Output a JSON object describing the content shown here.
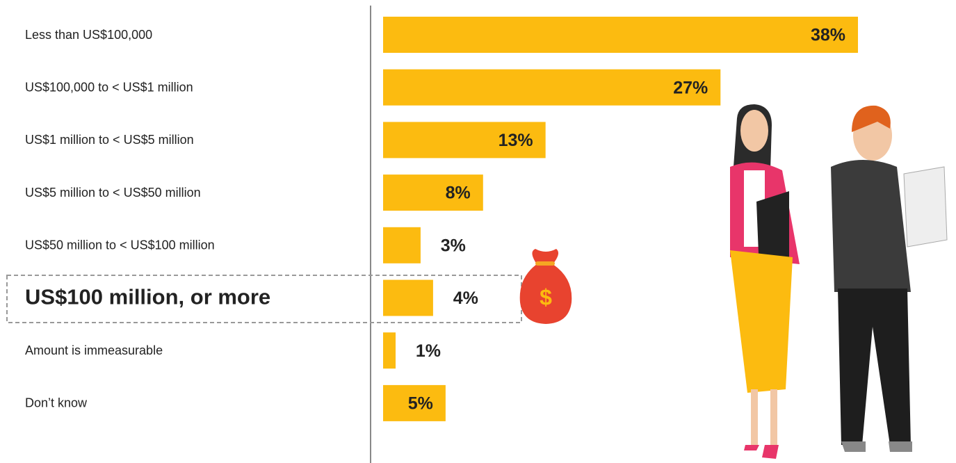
{
  "chart_data": {
    "type": "bar",
    "categories": [
      "Less than  US$100,000",
      "US$100,000 to <  US$1 million",
      "US$1 million to <  US$5 million",
      "US$5 million to <  US$50 million",
      "US$50 million to <  US$100 million",
      "US$100 million, or more",
      "Amount is immeasurable",
      "Don’t know"
    ],
    "values": [
      38,
      27,
      13,
      8,
      3,
      4,
      1,
      5
    ],
    "value_labels": [
      "38%",
      "27%",
      "13%",
      "8%",
      "3%",
      "4%",
      "1%",
      "5%"
    ],
    "color": "#fcbb10"
  }
}
